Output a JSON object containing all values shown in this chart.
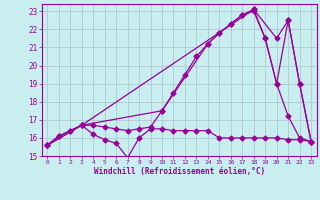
{
  "xlabel": "Windchill (Refroidissement éolien,°C)",
  "background_color": "#c8eef0",
  "line_color": "#990099",
  "grid_color": "#b0c8d0",
  "xlim": [
    -0.5,
    23.5
  ],
  "ylim": [
    15.0,
    23.4
  ],
  "xticks": [
    0,
    1,
    2,
    3,
    4,
    5,
    6,
    7,
    8,
    9,
    10,
    11,
    12,
    13,
    14,
    15,
    16,
    17,
    18,
    19,
    20,
    21,
    22,
    23
  ],
  "yticks": [
    15,
    16,
    17,
    18,
    19,
    20,
    21,
    22,
    23
  ],
  "line1_x": [
    0,
    1,
    2,
    3,
    4,
    5,
    6,
    7,
    8,
    9,
    10,
    11,
    12,
    13,
    14,
    15,
    16,
    17,
    18,
    19,
    20,
    21,
    22,
    23
  ],
  "line1_y": [
    15.6,
    16.1,
    16.4,
    16.7,
    16.2,
    15.9,
    15.7,
    14.9,
    16.0,
    16.5,
    16.5,
    16.4,
    16.4,
    16.4,
    16.4,
    16.0,
    16.0,
    16.0,
    16.0,
    16.0,
    16.0,
    15.9,
    15.9,
    15.8
  ],
  "line2_x": [
    0,
    1,
    2,
    3,
    4,
    5,
    6,
    7,
    8,
    9,
    10,
    11,
    12,
    13,
    14,
    15,
    16,
    17,
    18,
    19,
    20,
    21,
    22,
    23
  ],
  "line2_y": [
    15.6,
    16.1,
    16.4,
    16.7,
    16.7,
    16.6,
    16.5,
    16.4,
    16.5,
    16.6,
    17.5,
    18.5,
    19.5,
    20.5,
    21.2,
    21.8,
    22.3,
    22.8,
    23.0,
    21.5,
    19.0,
    17.2,
    16.0,
    15.8
  ],
  "line3_x": [
    0,
    3,
    10,
    14,
    15,
    16,
    17,
    18,
    19,
    20,
    21,
    22,
    23
  ],
  "line3_y": [
    15.6,
    16.7,
    17.5,
    21.2,
    21.8,
    22.3,
    22.8,
    23.1,
    21.5,
    19.0,
    22.5,
    19.0,
    15.8
  ],
  "line4_x": [
    0,
    3,
    18,
    20,
    21,
    22,
    23
  ],
  "line4_y": [
    15.6,
    16.7,
    23.1,
    21.5,
    22.5,
    19.0,
    15.8
  ]
}
